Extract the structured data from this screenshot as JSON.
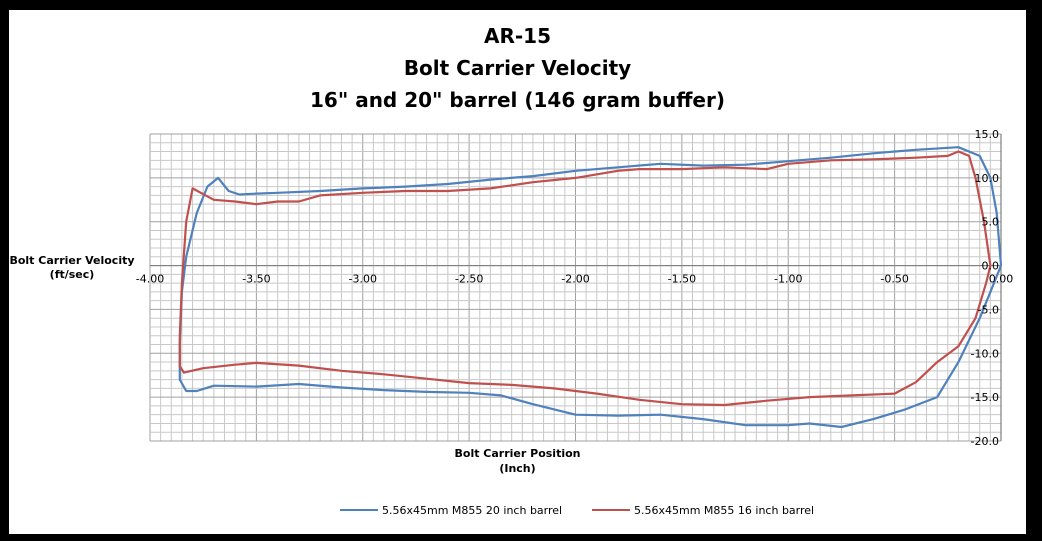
{
  "colors": {
    "frame": "#000000",
    "background": "#ffffff",
    "grid": "#c8c8c8",
    "axis": "#808080",
    "series_20in": "#4f81bd",
    "series_16in": "#c0504d"
  },
  "chart_data": {
    "type": "line",
    "title_lines": [
      "AR-15",
      "Bolt Carrier Velocity",
      "16\" and 20\" barrel (146 gram buffer)"
    ],
    "ylabel_lines": [
      "Bolt Carrier Velocity",
      "(ft/sec)"
    ],
    "xlabel_lines": [
      "Bolt Carrier Position",
      "(Inch)"
    ],
    "xlim": [
      -4.0,
      0.0
    ],
    "ylim": [
      -20.0,
      15.0
    ],
    "x_ticks": [
      "-4.00",
      "-3.50",
      "-3.00",
      "-2.50",
      "-2.00",
      "-1.50",
      "-1.00",
      "-0.50",
      "0.00"
    ],
    "y_ticks": [
      "15.0",
      "10.0",
      "5.0",
      "0.0",
      "-5.0",
      "-10.0",
      "-15.0",
      "-20.0"
    ],
    "grid": true,
    "legend_position": "bottom",
    "series": [
      {
        "name": "5.56x45mm M855 20 inch barrel",
        "points": [
          [
            0.0,
            0.0
          ],
          [
            -0.02,
            6.0
          ],
          [
            -0.05,
            10.0
          ],
          [
            -0.1,
            12.5
          ],
          [
            -0.2,
            13.5
          ],
          [
            -0.4,
            13.2
          ],
          [
            -0.6,
            12.8
          ],
          [
            -0.8,
            12.3
          ],
          [
            -1.0,
            11.9
          ],
          [
            -1.2,
            11.5
          ],
          [
            -1.4,
            11.4
          ],
          [
            -1.6,
            11.6
          ],
          [
            -1.8,
            11.2
          ],
          [
            -2.0,
            10.8
          ],
          [
            -2.2,
            10.2
          ],
          [
            -2.4,
            9.8
          ],
          [
            -2.6,
            9.3
          ],
          [
            -2.8,
            9.0
          ],
          [
            -3.0,
            8.8
          ],
          [
            -3.2,
            8.5
          ],
          [
            -3.4,
            8.3
          ],
          [
            -3.5,
            8.2
          ],
          [
            -3.58,
            8.1
          ],
          [
            -3.63,
            8.5
          ],
          [
            -3.68,
            10.0
          ],
          [
            -3.73,
            9.0
          ],
          [
            -3.78,
            6.0
          ],
          [
            -3.83,
            1.0
          ],
          [
            -3.85,
            -3.0
          ],
          [
            -3.86,
            -9.0
          ],
          [
            -3.86,
            -13.0
          ],
          [
            -3.83,
            -14.3
          ],
          [
            -3.78,
            -14.3
          ],
          [
            -3.7,
            -13.7
          ],
          [
            -3.5,
            -13.8
          ],
          [
            -3.3,
            -13.5
          ],
          [
            -3.1,
            -13.9
          ],
          [
            -2.9,
            -14.2
          ],
          [
            -2.7,
            -14.4
          ],
          [
            -2.5,
            -14.5
          ],
          [
            -2.35,
            -14.8
          ],
          [
            -2.2,
            -15.8
          ],
          [
            -2.0,
            -17.0
          ],
          [
            -1.8,
            -17.1
          ],
          [
            -1.6,
            -17.0
          ],
          [
            -1.4,
            -17.5
          ],
          [
            -1.2,
            -18.2
          ],
          [
            -1.0,
            -18.2
          ],
          [
            -0.9,
            -18.0
          ],
          [
            -0.75,
            -18.4
          ],
          [
            -0.6,
            -17.5
          ],
          [
            -0.45,
            -16.4
          ],
          [
            -0.3,
            -15.0
          ],
          [
            -0.2,
            -11.0
          ],
          [
            -0.1,
            -6.0
          ],
          [
            -0.05,
            -3.0
          ],
          [
            0.0,
            0.0
          ]
        ]
      },
      {
        "name": "5.56x45mm M855 16 inch barrel",
        "points": [
          [
            -0.05,
            0.0
          ],
          [
            -0.08,
            5.0
          ],
          [
            -0.12,
            10.0
          ],
          [
            -0.15,
            12.5
          ],
          [
            -0.2,
            13.0
          ],
          [
            -0.25,
            12.5
          ],
          [
            -0.4,
            12.3
          ],
          [
            -0.6,
            12.1
          ],
          [
            -0.8,
            12.0
          ],
          [
            -1.0,
            11.6
          ],
          [
            -1.1,
            11.0
          ],
          [
            -1.3,
            11.2
          ],
          [
            -1.5,
            11.0
          ],
          [
            -1.7,
            11.0
          ],
          [
            -1.8,
            10.8
          ],
          [
            -2.0,
            10.0
          ],
          [
            -2.2,
            9.5
          ],
          [
            -2.4,
            8.8
          ],
          [
            -2.6,
            8.5
          ],
          [
            -2.8,
            8.5
          ],
          [
            -3.0,
            8.3
          ],
          [
            -3.2,
            8.0
          ],
          [
            -3.3,
            7.3
          ],
          [
            -3.4,
            7.3
          ],
          [
            -3.5,
            7.0
          ],
          [
            -3.6,
            7.3
          ],
          [
            -3.7,
            7.5
          ],
          [
            -3.8,
            8.8
          ],
          [
            -3.83,
            5.0
          ],
          [
            -3.85,
            -2.0
          ],
          [
            -3.86,
            -8.0
          ],
          [
            -3.86,
            -11.5
          ],
          [
            -3.84,
            -12.2
          ],
          [
            -3.75,
            -11.7
          ],
          [
            -3.6,
            -11.3
          ],
          [
            -3.5,
            -11.1
          ],
          [
            -3.3,
            -11.4
          ],
          [
            -3.1,
            -12.0
          ],
          [
            -2.9,
            -12.4
          ],
          [
            -2.7,
            -12.9
          ],
          [
            -2.5,
            -13.4
          ],
          [
            -2.3,
            -13.6
          ],
          [
            -2.1,
            -14.0
          ],
          [
            -1.9,
            -14.6
          ],
          [
            -1.7,
            -15.3
          ],
          [
            -1.5,
            -15.8
          ],
          [
            -1.3,
            -15.9
          ],
          [
            -1.1,
            -15.4
          ],
          [
            -0.9,
            -15.0
          ],
          [
            -0.7,
            -14.8
          ],
          [
            -0.5,
            -14.6
          ],
          [
            -0.4,
            -13.3
          ],
          [
            -0.3,
            -11.0
          ],
          [
            -0.2,
            -9.2
          ],
          [
            -0.12,
            -6.0
          ],
          [
            -0.07,
            -2.0
          ],
          [
            -0.05,
            0.0
          ]
        ]
      }
    ]
  }
}
